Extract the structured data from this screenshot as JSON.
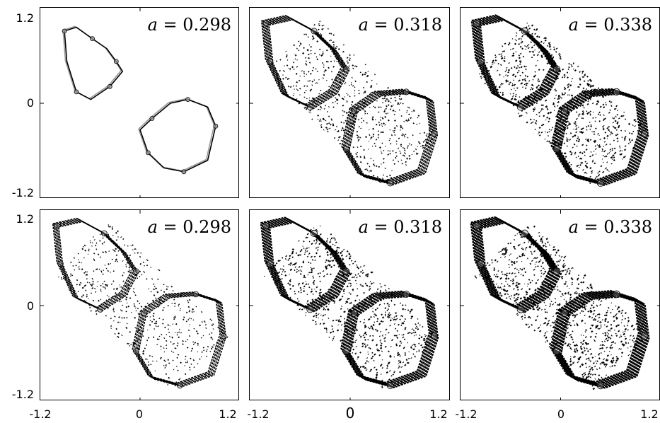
{
  "chart_data": {
    "type": "scatter",
    "layout": "2x3 grid of attractor panels",
    "x_ticks": [
      "-1.2",
      "0",
      "1.2"
    ],
    "y_ticks": [
      "1.2",
      "0",
      "-1.2"
    ],
    "xlim": [
      -1.2,
      1.2
    ],
    "ylim": [
      -1.2,
      1.2
    ],
    "grid": false,
    "parameter_name": "a",
    "colors": {
      "points": "#000000",
      "shade": "#9a9a9a"
    },
    "panels": [
      {
        "row": 1,
        "col": 1,
        "label": "a = 0.298",
        "value": "0.298",
        "density": 0.0,
        "loops": 2
      },
      {
        "row": 1,
        "col": 2,
        "label": "a = 0.318",
        "value": "0.318",
        "density": 0.55,
        "loops": 2
      },
      {
        "row": 1,
        "col": 3,
        "label": "a = 0.338",
        "value": "0.338",
        "density": 0.85,
        "loops": 2
      },
      {
        "row": 2,
        "col": 1,
        "label": "a = 0.298",
        "value": "0.298",
        "density": 0.45,
        "loops": 2
      },
      {
        "row": 2,
        "col": 2,
        "label": "a = 0.318",
        "value": "0.318",
        "density": 0.8,
        "loops": 2
      },
      {
        "row": 2,
        "col": 3,
        "label": "a = 0.338",
        "value": "0.338",
        "density": 0.95,
        "loops": 2
      }
    ]
  }
}
